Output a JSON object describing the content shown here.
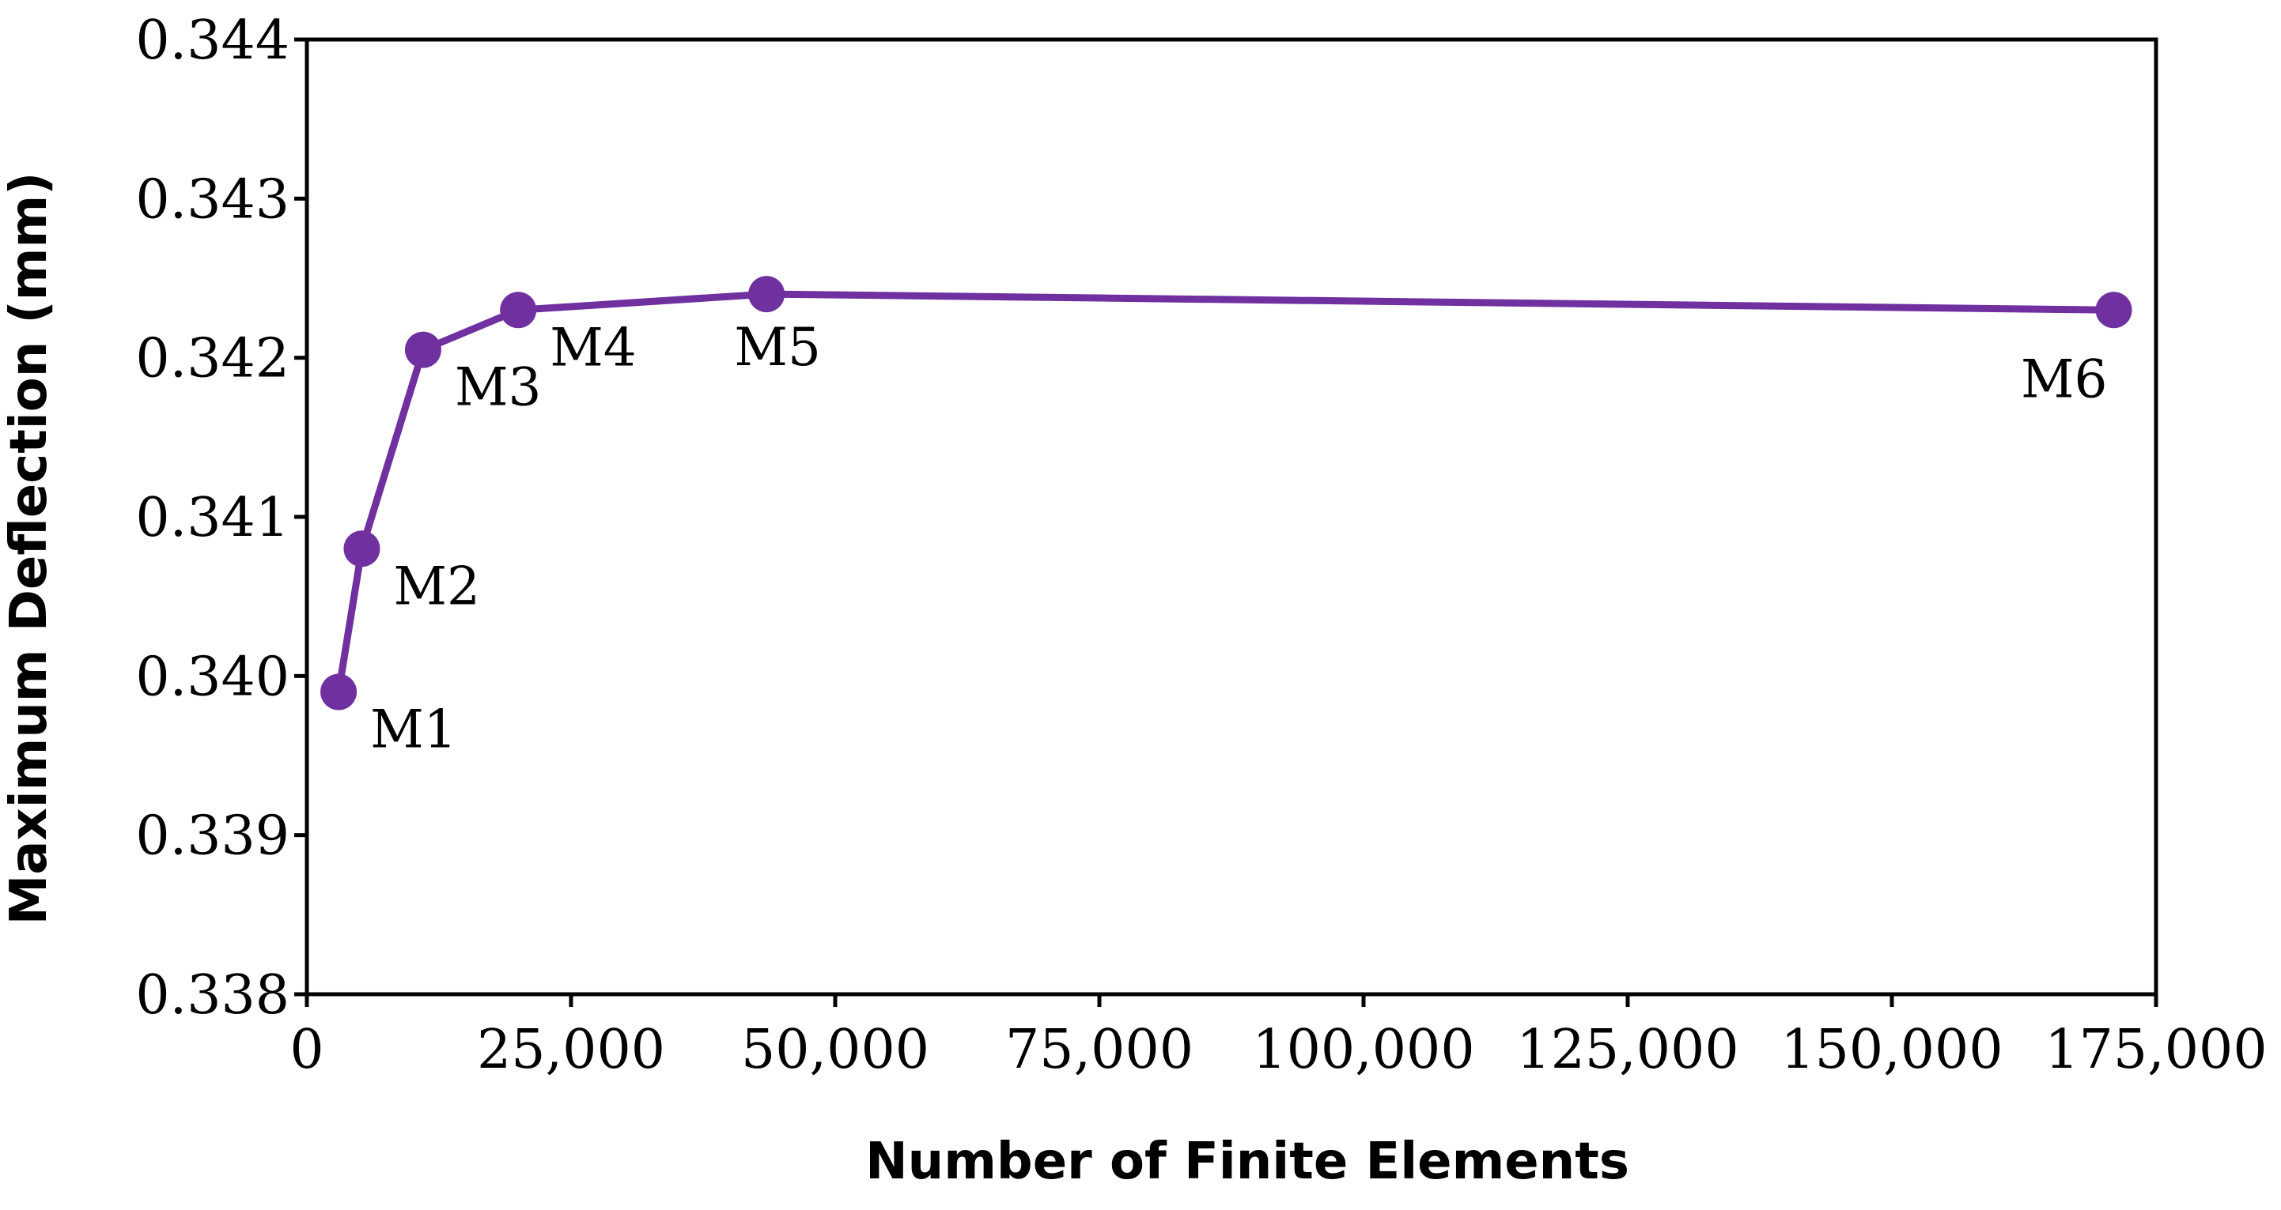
{
  "chart_data": {
    "type": "line",
    "title": "",
    "xlabel": "Number of Finite Elements",
    "ylabel": "Maximum Deflection (mm)",
    "xlim": [
      0,
      175000
    ],
    "ylim": [
      0.338,
      0.344
    ],
    "x_ticks": [
      0,
      25000,
      50000,
      75000,
      100000,
      125000,
      150000,
      175000
    ],
    "x_tick_labels": [
      "0",
      "25,000",
      "50,000",
      "75,000",
      "100,000",
      "125,000",
      "150,000",
      "175,000"
    ],
    "y_ticks": [
      0.338,
      0.339,
      0.34,
      0.341,
      0.342,
      0.343,
      0.344
    ],
    "y_tick_labels": [
      "0.338",
      "0.339",
      "0.340",
      "0.341",
      "0.342",
      "0.343",
      "0.344"
    ],
    "grid": false,
    "legend": "none",
    "series_color": "#7030a0",
    "series": [
      {
        "x": [
          3000,
          5200,
          11000,
          20000,
          43500,
          171000
        ],
        "y": [
          0.3399,
          0.3408,
          0.34205,
          0.3423,
          0.3424,
          0.3423
        ],
        "point_labels": [
          "M1",
          "M2",
          "M3",
          "M4",
          "M5",
          "M6"
        ],
        "point_label_positions": [
          "below-right",
          "below-right",
          "below-right",
          "below-right",
          "below",
          "below-left"
        ]
      }
    ]
  }
}
